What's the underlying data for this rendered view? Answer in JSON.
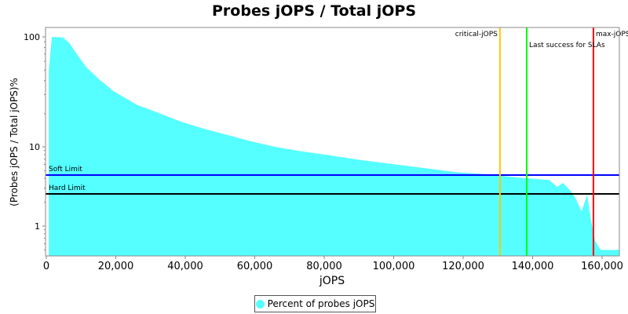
{
  "chart_data": {
    "type": "area",
    "title": "Probes jOPS / Total jOPS",
    "xlabel": "jOPS",
    "ylabel": "(Probes jOPS / Total jOPS)%",
    "yscale": "log",
    "xlim": [
      0,
      165000
    ],
    "ylim": [
      0.42,
      122
    ],
    "x_ticks": [
      0,
      20000,
      40000,
      60000,
      80000,
      100000,
      120000,
      140000,
      160000
    ],
    "x_tick_labels": [
      "0",
      "20,000",
      "40,000",
      "60,000",
      "80,000",
      "100,000",
      "120,000",
      "140,000",
      "160,000"
    ],
    "y_ticks": [
      1,
      10,
      100
    ],
    "y_tick_labels": [
      "1",
      "10",
      "100"
    ],
    "grid": false,
    "legend_placement": "bottom",
    "series": [
      {
        "name": "Percent of probes jOPS",
        "color": "#55ffff",
        "points": [
          [
            700,
            49
          ],
          [
            1600,
            100
          ],
          [
            4800,
            99
          ],
          [
            6600,
            88
          ],
          [
            8600,
            71
          ],
          [
            11500,
            53
          ],
          [
            14900,
            42
          ],
          [
            19400,
            32
          ],
          [
            26200,
            24
          ],
          [
            31900,
            20.6
          ],
          [
            38600,
            17
          ],
          [
            45400,
            14.6
          ],
          [
            52200,
            12.8
          ],
          [
            59000,
            11.2
          ],
          [
            65800,
            10
          ],
          [
            72500,
            8.9
          ],
          [
            81600,
            7.8
          ],
          [
            90600,
            6.8
          ],
          [
            99700,
            6.06
          ],
          [
            108700,
            5.4
          ],
          [
            117700,
            4.8
          ],
          [
            126800,
            4.5
          ],
          [
            135800,
            4.1
          ],
          [
            144900,
            3.8
          ],
          [
            145500,
            3.58
          ],
          [
            147100,
            3.12
          ],
          [
            148700,
            3.5
          ],
          [
            150900,
            2.79
          ],
          [
            152300,
            2.27
          ],
          [
            154100,
            1.54
          ],
          [
            155700,
            2.49
          ],
          [
            156800,
            1.2
          ],
          [
            158000,
            0.65
          ],
          [
            159600,
            0.5
          ],
          [
            164700,
            0.5
          ]
        ]
      }
    ],
    "horizontal_lines": [
      {
        "label": "Soft Limit",
        "value": 4.4,
        "color": "#0000ff"
      },
      {
        "label": "Hard Limit",
        "value": 2.55,
        "color": "#000000"
      }
    ],
    "vertical_lines": [
      {
        "label": "critical-jOPS",
        "value": 130600,
        "color": "#ffc800"
      },
      {
        "label": "Last success for SLAs",
        "value": 138300,
        "color": "#00ff00"
      },
      {
        "label": "max-jOPS",
        "value": 157500,
        "color": "#ff0000"
      }
    ]
  }
}
